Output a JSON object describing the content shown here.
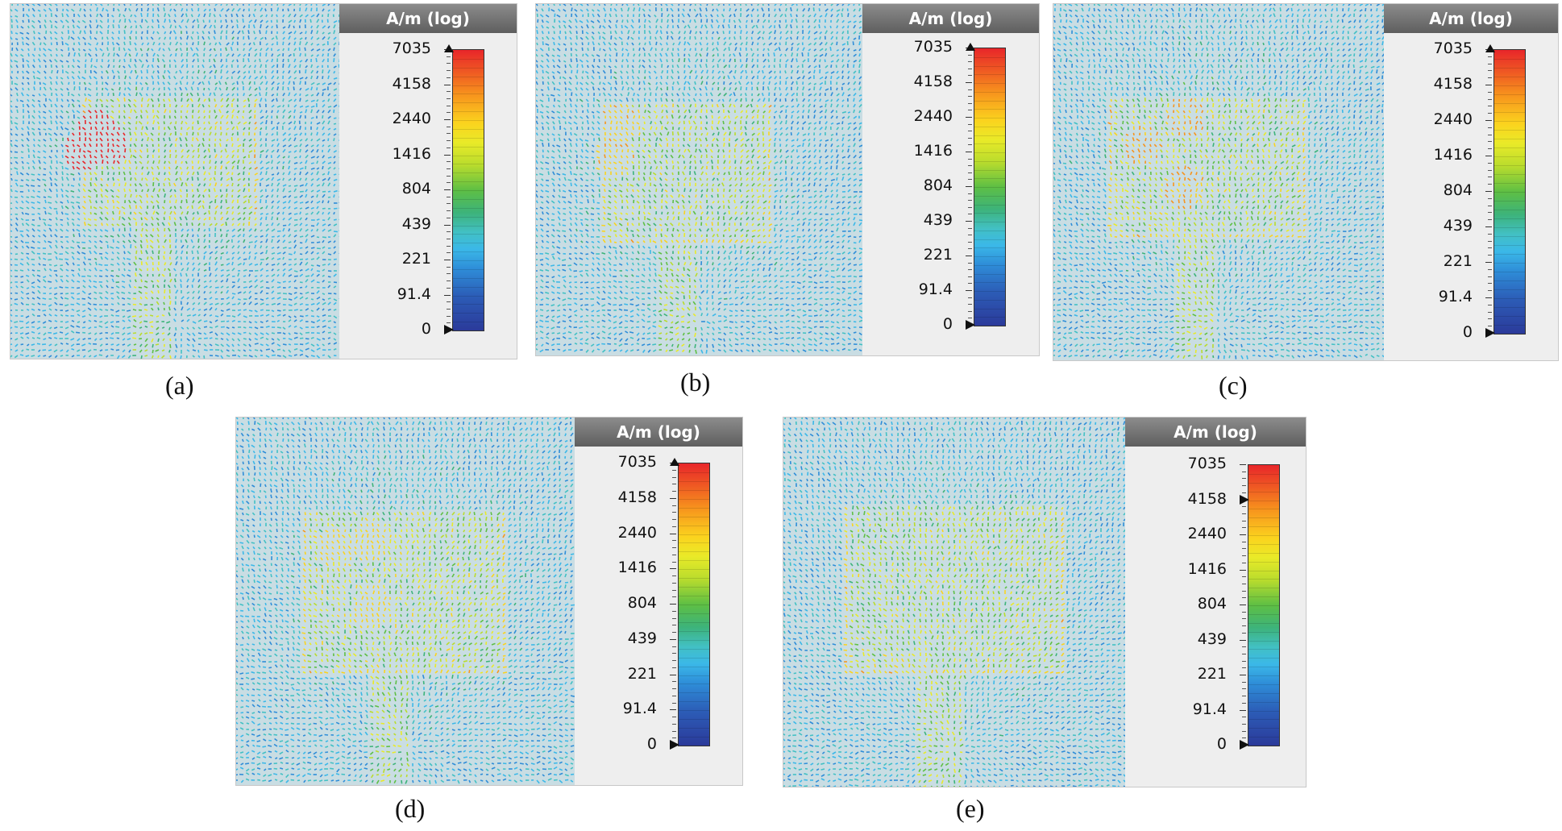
{
  "panels": [
    {
      "id": "a",
      "caption": "(a)",
      "unit_label": "A/m (log)",
      "scale_labels": [
        "7035",
        "4158",
        "2440",
        "1416",
        "804",
        "439",
        "221",
        "91.4",
        "0"
      ],
      "top_marker_value": "7035",
      "bottom_marker_value": "0"
    },
    {
      "id": "b",
      "caption": "(b)",
      "unit_label": "A/m (log)",
      "scale_labels": [
        "7035",
        "4158",
        "2440",
        "1416",
        "804",
        "439",
        "221",
        "91.4",
        "0"
      ],
      "top_marker_value": "7035",
      "bottom_marker_value": "0"
    },
    {
      "id": "c",
      "caption": "(c)",
      "unit_label": "A/m (log)",
      "scale_labels": [
        "7035",
        "4158",
        "2440",
        "1416",
        "804",
        "439",
        "221",
        "91.4",
        "0"
      ],
      "top_marker_value": "7035",
      "bottom_marker_value": "0"
    },
    {
      "id": "d",
      "caption": "(d)",
      "unit_label": "A/m (log)",
      "scale_labels": [
        "7035",
        "4158",
        "2440",
        "1416",
        "804",
        "439",
        "221",
        "91.4",
        "0"
      ],
      "top_marker_value": "7035",
      "bottom_marker_value": "0"
    },
    {
      "id": "e",
      "caption": "(e)",
      "unit_label": "A/m (log)",
      "scale_labels": [
        "7035",
        "4158",
        "2440",
        "1416",
        "804",
        "439",
        "221",
        "91.4",
        "0"
      ],
      "top_marker_value": "4158",
      "bottom_marker_value": "0"
    }
  ]
}
